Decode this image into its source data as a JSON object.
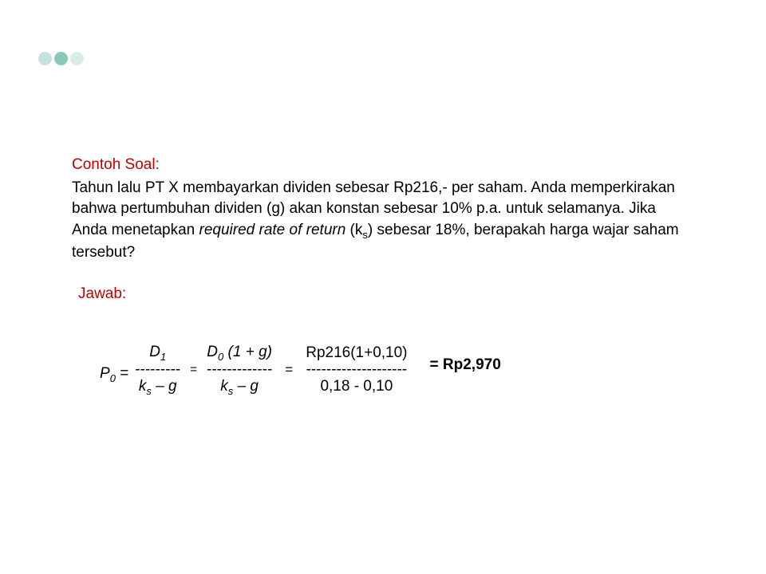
{
  "dots": {
    "colors": [
      "#c4e3dc",
      "#88c9ba",
      "#d9ece7"
    ]
  },
  "title": "Contoh Soal:",
  "question": {
    "text_before_ks": "Tahun lalu PT X membayarkan dividen sebesar Rp216,- per saham. Anda memperkirakan bahwa pertumbuhan dividen (g) akan konstan sebesar 10% p.a. untuk selamanya. Jika Anda menetapkan ",
    "italic_phrase": "required rate of return",
    "ks_open": " (k",
    "ks_sub": "s",
    "text_after_ks": ") sebesar 18%, berapakah harga wajar saham tersebut?"
  },
  "answer_label": "Jawab:",
  "formula": {
    "p0_p": "P",
    "p0_sub": "0",
    "p0_eq": " = ",
    "frac1": {
      "num_d": "D",
      "num_sub": "1",
      "divider": "---------",
      "denom_k": "k",
      "denom_s": "s",
      "denom_rest": " – g"
    },
    "eq1": "=",
    "frac2": {
      "num_d": "D",
      "num_sub": "0",
      "num_rest": " (1 + g)",
      "divider": "-------------",
      "denom_k": "k",
      "denom_s": "s",
      "denom_rest": " – g"
    },
    "eq2": "=",
    "frac3": {
      "numerator": "Rp216(1+0,10)",
      "divider": "--------------------",
      "denominator": "0,18 - 0,10"
    },
    "result": "= Rp2,970"
  }
}
